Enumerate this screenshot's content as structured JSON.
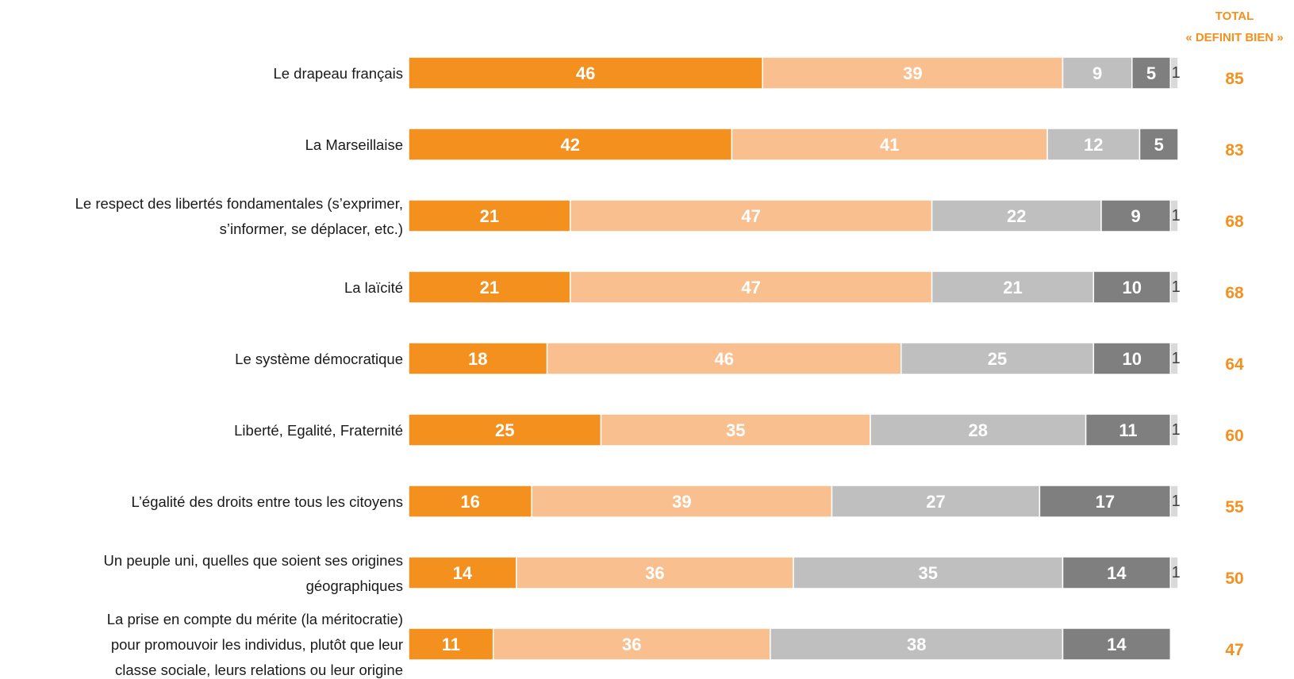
{
  "chart_data": {
    "type": "bar",
    "orientation": "horizontal",
    "stacked": true,
    "header": {
      "line1": "TOTAL",
      "line2": "« DEFINIT BIEN »"
    },
    "series_colors": [
      "#f4901e",
      "#f9bf8f",
      "#bfbfbf",
      "#7f7f7f",
      "#d9d9d9"
    ],
    "rows": [
      {
        "label_lines": [
          "Le drapeau français"
        ],
        "values": [
          46,
          39,
          9,
          5,
          1
        ],
        "total": 85
      },
      {
        "label_lines": [
          "La Marseillaise"
        ],
        "values": [
          42,
          41,
          12,
          5,
          0
        ],
        "total": 83
      },
      {
        "label_lines": [
          "Le respect des libertés fondamentales (s’exprimer,",
          "s’informer, se déplacer, etc.)"
        ],
        "values": [
          21,
          47,
          22,
          9,
          1
        ],
        "total": 68
      },
      {
        "label_lines": [
          "La laïcité"
        ],
        "values": [
          21,
          47,
          21,
          10,
          1
        ],
        "total": 68
      },
      {
        "label_lines": [
          "Le système démocratique"
        ],
        "values": [
          18,
          46,
          25,
          10,
          1
        ],
        "total": 64
      },
      {
        "label_lines": [
          "Liberté, Egalité, Fraternité"
        ],
        "values": [
          25,
          35,
          28,
          11,
          1
        ],
        "total": 60
      },
      {
        "label_lines": [
          "L’égalité des droits entre tous les citoyens"
        ],
        "values": [
          16,
          39,
          27,
          17,
          1
        ],
        "total": 55
      },
      {
        "label_lines": [
          "Un peuple uni, quelles que soient ses origines",
          "géographiques"
        ],
        "values": [
          14,
          36,
          35,
          14,
          1
        ],
        "total": 50
      },
      {
        "label_lines": [
          "La prise en compte du mérite (la méritocratie)",
          "pour promouvoir les individus, plutôt que leur",
          "classe sociale, leurs relations ou leur origine"
        ],
        "values": [
          11,
          36,
          38,
          14,
          0
        ],
        "total": 47
      }
    ]
  }
}
